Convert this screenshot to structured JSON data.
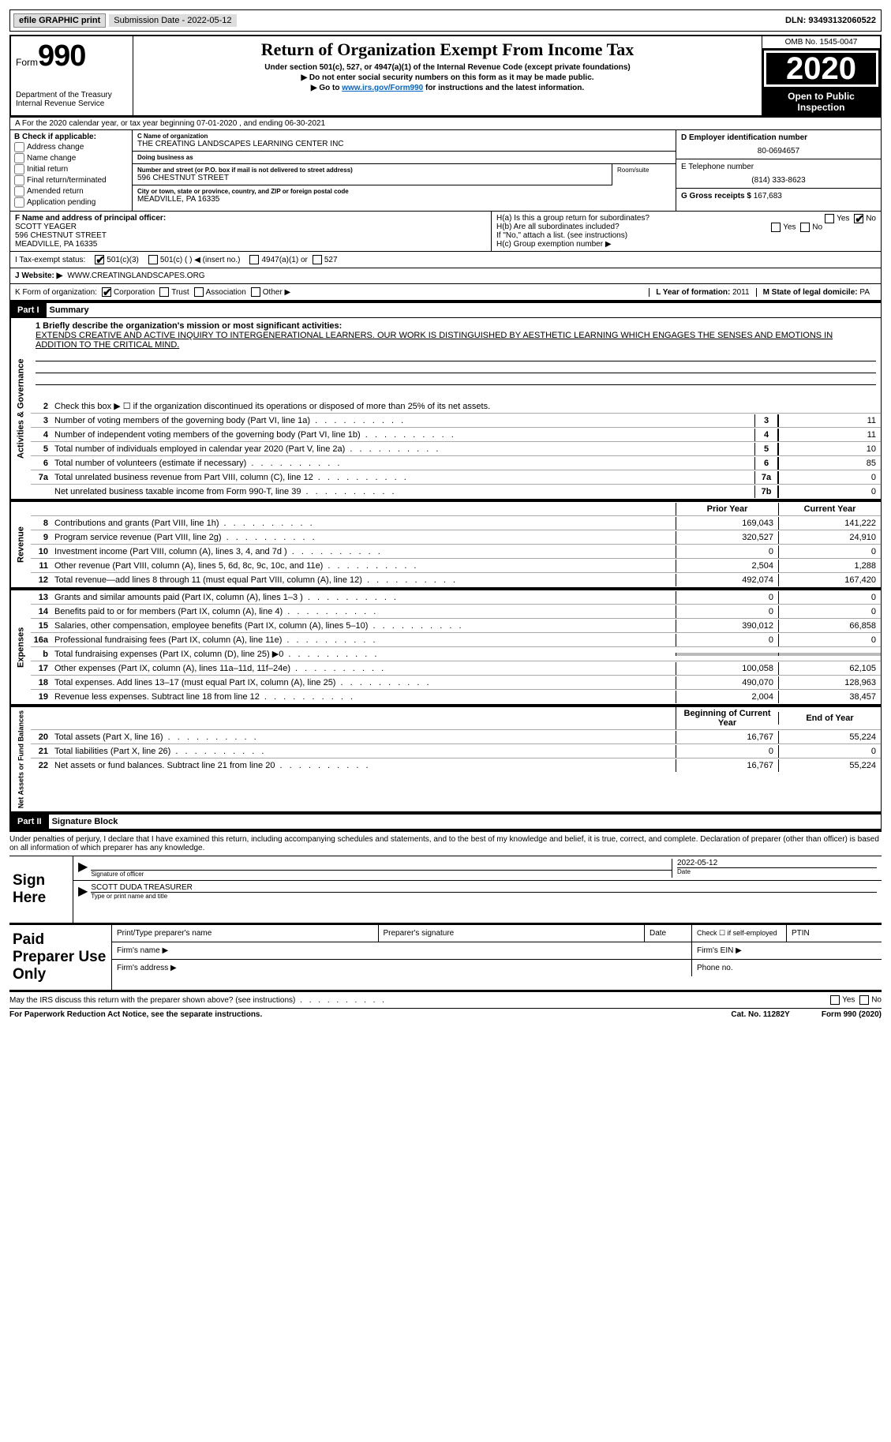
{
  "top": {
    "efile": "efile GRAPHIC print",
    "subm": "Submission Date - 2022-05-12",
    "dln": "DLN: 93493132060522"
  },
  "header": {
    "form_pre": "Form",
    "form_num": "990",
    "title": "Return of Organization Exempt From Income Tax",
    "sub1": "Under section 501(c), 527, or 4947(a)(1) of the Internal Revenue Code (except private foundations)",
    "sub2": "▶ Do not enter social security numbers on this form as it may be made public.",
    "sub3_pre": "▶ Go to ",
    "sub3_link": "www.irs.gov/Form990",
    "sub3_post": " for instructions and the latest information.",
    "dept": "Department of the Treasury\nInternal Revenue Service",
    "omb": "OMB No. 1545-0047",
    "year": "2020",
    "inspect": "Open to Public Inspection"
  },
  "rowA": "A For the 2020 calendar year, or tax year beginning 07-01-2020   , and ending 06-30-2021",
  "boxB": {
    "label": "B Check if applicable:",
    "items": [
      "Address change",
      "Name change",
      "Initial return",
      "Final return/terminated",
      "Amended return",
      "Application pending"
    ]
  },
  "boxC": {
    "name_lbl": "C Name of organization",
    "name": "THE CREATING LANDSCAPES LEARNING CENTER INC",
    "dba_lbl": "Doing business as",
    "dba": "",
    "street_lbl": "Number and street (or P.O. box if mail is not delivered to street address)",
    "street": "596 CHESTNUT STREET",
    "room_lbl": "Room/suite",
    "city_lbl": "City or town, state or province, country, and ZIP or foreign postal code",
    "city": "MEADVILLE, PA  16335"
  },
  "boxD": {
    "lbl": "D Employer identification number",
    "val": "80-0694657"
  },
  "boxE": {
    "lbl": "E Telephone number",
    "val": "(814) 333-8623"
  },
  "boxG": {
    "lbl": "G Gross receipts $",
    "val": "167,683"
  },
  "boxF": {
    "lbl": "F Name and address of principal officer:",
    "name": "SCOTT YEAGER",
    "addr1": "596 CHESTNUT STREET",
    "addr2": "MEADVILLE, PA  16335"
  },
  "boxH": {
    "a": "H(a)  Is this a group return for subordinates?",
    "b": "H(b)  Are all subordinates included?",
    "b2": "If \"No,\" attach a list. (see instructions)",
    "c": "H(c)  Group exemption number ▶"
  },
  "yes": "Yes",
  "no": "No",
  "boxI": {
    "lbl": "I   Tax-exempt status:",
    "o1": "501(c)(3)",
    "o2": "501(c) (  ) ◀ (insert no.)",
    "o3": "4947(a)(1) or",
    "o4": "527"
  },
  "boxJ": {
    "lbl": "J   Website: ▶",
    "val": "WWW.CREATINGLANDSCAPES.ORG"
  },
  "boxK": {
    "lbl": "K Form of organization:",
    "o1": "Corporation",
    "o2": "Trust",
    "o3": "Association",
    "o4": "Other ▶"
  },
  "boxL": {
    "lbl": "L Year of formation:",
    "val": "2011"
  },
  "boxM": {
    "lbl": "M State of legal domicile:",
    "val": "PA"
  },
  "part1": {
    "tag": "Part I",
    "title": "Summary"
  },
  "mission": {
    "lbl": "1  Briefly describe the organization's mission or most significant activities:",
    "text": "EXTENDS CREATIVE AND ACTIVE INQUIRY TO INTERGENERATIONAL LEARNERS. OUR WORK IS DISTINGUISHED BY AESTHETIC LEARNING WHICH ENGAGES THE SENSES AND EMOTIONS IN ADDITION TO THE CRITICAL MIND."
  },
  "gov": {
    "tab": "Activities & Governance",
    "l2": "Check this box ▶ ☐ if the organization discontinued its operations or disposed of more than 25% of its net assets.",
    "l3": "Number of voting members of the governing body (Part VI, line 1a)",
    "l4": "Number of independent voting members of the governing body (Part VI, line 1b)",
    "l5": "Total number of individuals employed in calendar year 2020 (Part V, line 2a)",
    "l6": "Total number of volunteers (estimate if necessary)",
    "l7a": "Total unrelated business revenue from Part VIII, column (C), line 12",
    "l7b": "Net unrelated business taxable income from Form 990-T, line 39",
    "v3": "11",
    "v4": "11",
    "v5": "10",
    "v6": "85",
    "v7a": "0",
    "v7b": "0"
  },
  "pycy": {
    "py": "Prior Year",
    "cy": "Current Year"
  },
  "rev": {
    "tab": "Revenue",
    "rows": [
      {
        "n": "8",
        "d": "Contributions and grants (Part VIII, line 1h)",
        "py": "169,043",
        "cy": "141,222"
      },
      {
        "n": "9",
        "d": "Program service revenue (Part VIII, line 2g)",
        "py": "320,527",
        "cy": "24,910"
      },
      {
        "n": "10",
        "d": "Investment income (Part VIII, column (A), lines 3, 4, and 7d )",
        "py": "0",
        "cy": "0"
      },
      {
        "n": "11",
        "d": "Other revenue (Part VIII, column (A), lines 5, 6d, 8c, 9c, 10c, and 11e)",
        "py": "2,504",
        "cy": "1,288"
      },
      {
        "n": "12",
        "d": "Total revenue—add lines 8 through 11 (must equal Part VIII, column (A), line 12)",
        "py": "492,074",
        "cy": "167,420"
      }
    ]
  },
  "exp": {
    "tab": "Expenses",
    "rows": [
      {
        "n": "13",
        "d": "Grants and similar amounts paid (Part IX, column (A), lines 1–3 )",
        "py": "0",
        "cy": "0"
      },
      {
        "n": "14",
        "d": "Benefits paid to or for members (Part IX, column (A), line 4)",
        "py": "0",
        "cy": "0"
      },
      {
        "n": "15",
        "d": "Salaries, other compensation, employee benefits (Part IX, column (A), lines 5–10)",
        "py": "390,012",
        "cy": "66,858"
      },
      {
        "n": "16a",
        "d": "Professional fundraising fees (Part IX, column (A), line 11e)",
        "py": "0",
        "cy": "0"
      },
      {
        "n": "b",
        "d": "Total fundraising expenses (Part IX, column (D), line 25) ▶0",
        "py": "",
        "cy": "",
        "shaded": true
      },
      {
        "n": "17",
        "d": "Other expenses (Part IX, column (A), lines 11a–11d, 11f–24e)",
        "py": "100,058",
        "cy": "62,105"
      },
      {
        "n": "18",
        "d": "Total expenses. Add lines 13–17 (must equal Part IX, column (A), line 25)",
        "py": "490,070",
        "cy": "128,963"
      },
      {
        "n": "19",
        "d": "Revenue less expenses. Subtract line 18 from line 12",
        "py": "2,004",
        "cy": "38,457"
      }
    ]
  },
  "na": {
    "tab": "Net Assets or Fund Balances",
    "head_py": "Beginning of Current Year",
    "head_cy": "End of Year",
    "rows": [
      {
        "n": "20",
        "d": "Total assets (Part X, line 16)",
        "py": "16,767",
        "cy": "55,224"
      },
      {
        "n": "21",
        "d": "Total liabilities (Part X, line 26)",
        "py": "0",
        "cy": "0"
      },
      {
        "n": "22",
        "d": "Net assets or fund balances. Subtract line 21 from line 20",
        "py": "16,767",
        "cy": "55,224"
      }
    ]
  },
  "part2": {
    "tag": "Part II",
    "title": "Signature Block"
  },
  "penalty": "Under penalties of perjury, I declare that I have examined this return, including accompanying schedules and statements, and to the best of my knowledge and belief, it is true, correct, and complete. Declaration of preparer (other than officer) is based on all information of which preparer has any knowledge.",
  "sign": {
    "here": "Sign Here",
    "sig_lbl": "Signature of officer",
    "date": "2022-05-12",
    "date_lbl": "Date",
    "name": "SCOTT DUDA TREASURER",
    "name_lbl": "Type or print name and title"
  },
  "paid": {
    "label": "Paid Preparer Use Only",
    "c1": "Print/Type preparer's name",
    "c2": "Preparer's signature",
    "c3": "Date",
    "c4": "Check ☐ if self-employed",
    "c5": "PTIN",
    "firm_name": "Firm's name  ▶",
    "firm_ein": "Firm's EIN ▶",
    "firm_addr": "Firm's address ▶",
    "phone": "Phone no."
  },
  "discuss": "May the IRS discuss this return with the preparer shown above? (see instructions)",
  "footer": {
    "pra": "For Paperwork Reduction Act Notice, see the separate instructions.",
    "cat": "Cat. No. 11282Y",
    "form": "Form 990 (2020)"
  }
}
